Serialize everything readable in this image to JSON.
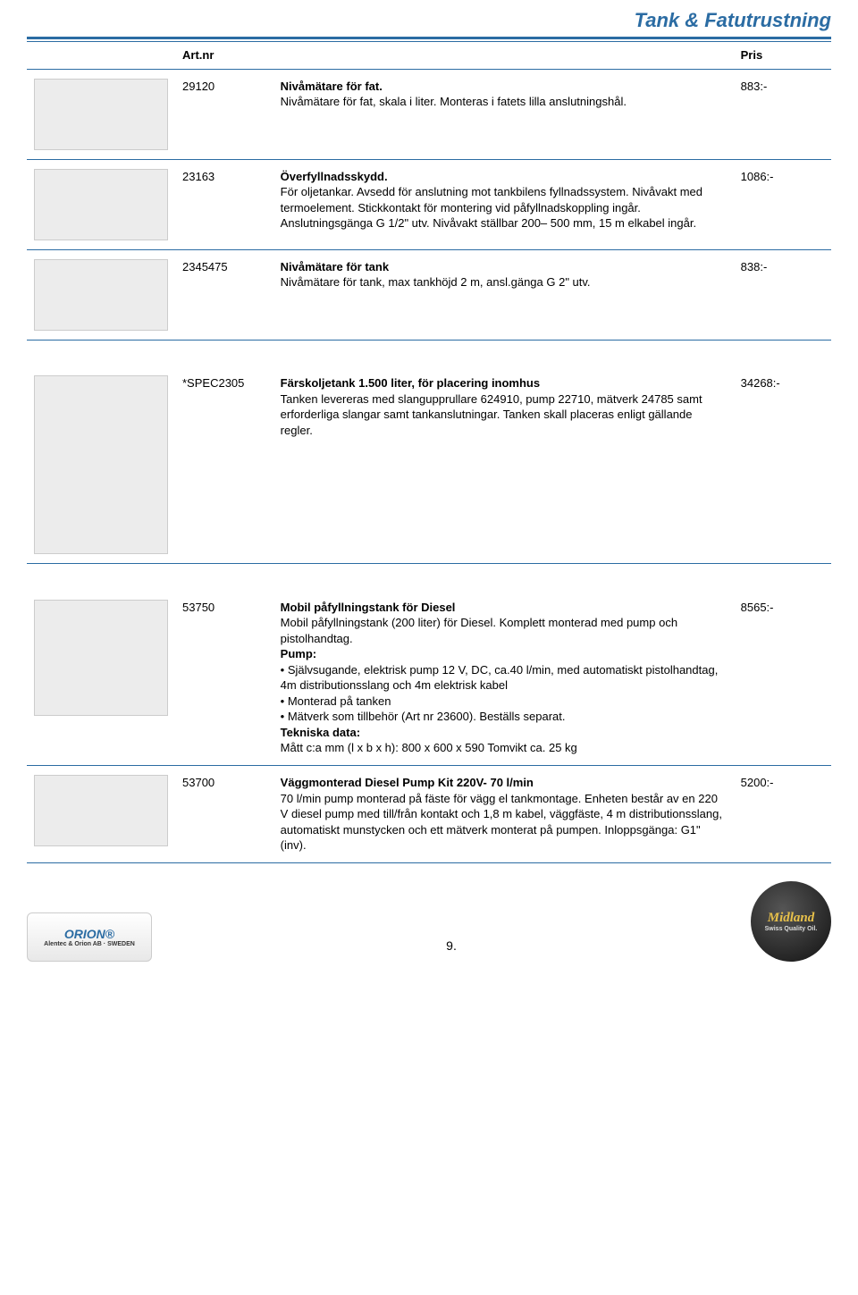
{
  "page": {
    "title": "Tank & Fatutrustning",
    "number": "9."
  },
  "table": {
    "headers": {
      "art": "Art.nr",
      "price": "Pris"
    }
  },
  "rows": [
    {
      "art": "29120",
      "title": "Nivåmätare för fat.",
      "body": "Nivåmätare för fat, skala i liter. Monteras i fatets lilla anslutningshål.",
      "price": "883:-",
      "imgClass": "product-img"
    },
    {
      "art": "23163",
      "title": "Överfyllnadsskydd.",
      "body": "För oljetankar. Avsedd för anslutning mot tankbilens fyllnadssystem. Nivåvakt med termoelement. Stickkontakt för montering vid påfyllnadskoppling ingår. Anslutningsgänga G 1/2\" utv. Nivåvakt ställbar 200– 500 mm, 15 m elkabel ingår.",
      "price": "1086:-",
      "imgClass": "product-img"
    },
    {
      "art": "2345475",
      "title": "Nivåmätare för tank",
      "body": "Nivåmätare för tank, max tankhöjd 2 m, ansl.gänga G 2\" utv.",
      "price": "838:-",
      "imgClass": "product-img"
    },
    {
      "art": "*SPEC2305",
      "title": "Färskoljetank 1.500 liter, för placering inomhus",
      "body": "Tanken levereras med slangupprullare 624910, pump 22710, mätverk 24785 samt erforderliga slangar samt tankanslutningar. Tanken skall placeras enligt gällande regler.",
      "price": "34268:-",
      "imgClass": "product-img tall"
    },
    {
      "art": "53750",
      "title": "Mobil påfyllningstank för Diesel",
      "body": "Mobil påfyllningstank (200 liter) för Diesel. Komplett monterad med pump och pistolhandtag.\nPump:\n• Självsugande, elektrisk pump 12 V, DC, ca.40 l/min, med automatiskt pistolhandtag, 4m distributionsslang och 4m elektrisk kabel\n• Monterad på tanken\n• Mätverk som tillbehör (Art nr 23600). Beställs separat.\nTekniska data:\nMått c:a mm (l x b x h): 800 x 600 x 590 Tomvikt ca. 25 kg",
      "price": "8565:-",
      "imgClass": "product-img med",
      "rich": true,
      "bold_lines": [
        "Pump:",
        "Tekniska data:"
      ]
    },
    {
      "art": "53700",
      "title": "Väggmonterad Diesel Pump Kit 220V- 70 l/min",
      "body": "70 l/min pump monterad på fäste för vägg el tankmontage. Enheten består av en 220 V diesel pump med till/från kontakt och 1,8 m kabel, väggfäste, 4 m distributionsslang, automatiskt munstycken och ett mätverk monterat på pumpen. Inloppsgänga: G1\" (inv).",
      "price": "5200:-",
      "imgClass": "product-img"
    }
  ],
  "footer": {
    "logo_left": "ORION®",
    "logo_left_sub": "Alentec & Orion AB · SWEDEN",
    "logo_right_1": "Midland",
    "logo_right_2": "Swiss Quality Oil."
  }
}
